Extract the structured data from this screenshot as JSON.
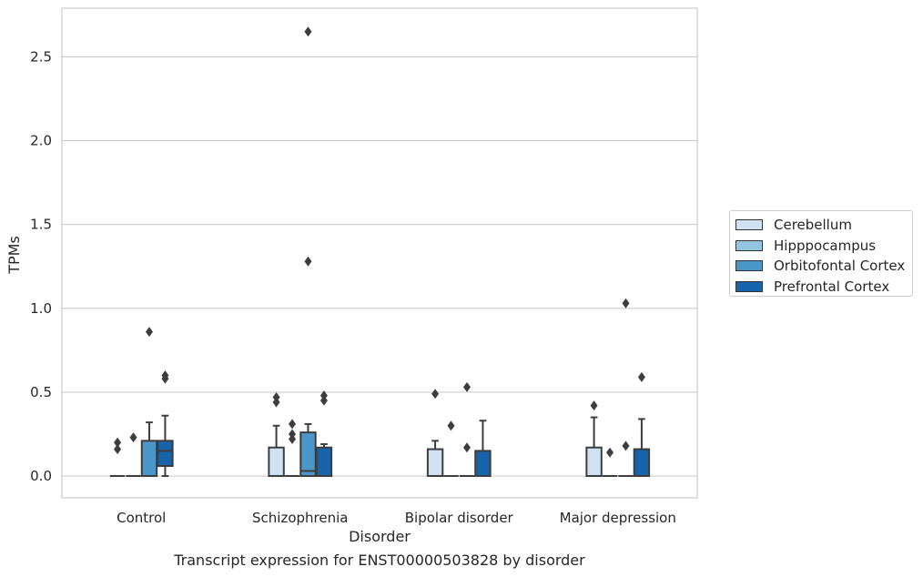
{
  "chart_data": {
    "type": "box",
    "title": "",
    "xlabel": "Disorder",
    "ylabel": "TPMs",
    "ylim": [
      -0.13,
      2.79
    ],
    "yticks": [
      0.0,
      0.5,
      1.0,
      1.5,
      2.0,
      2.5
    ],
    "ytick_labels": [
      "0.0",
      "0.5",
      "1.0",
      "1.5",
      "2.0",
      "2.5"
    ],
    "grid": true,
    "legend_position": "right",
    "categories": [
      "Control",
      "Schizophrenia",
      "Bipolar disorder",
      "Major depression"
    ],
    "series": [
      {
        "name": "Cerebellum",
        "color": "#d0e1f2",
        "boxes": [
          {
            "q1": 0,
            "median": 0,
            "q3": 0,
            "wlow": 0,
            "whigh": 0,
            "outliers": [
              0.16,
              0.2
            ]
          },
          {
            "q1": 0,
            "median": 0,
            "q3": 0.17,
            "wlow": 0,
            "whigh": 0.3,
            "outliers": [
              0.44,
              0.47
            ]
          },
          {
            "q1": 0,
            "median": 0,
            "q3": 0.16,
            "wlow": 0,
            "whigh": 0.21,
            "outliers": [
              0.49
            ]
          },
          {
            "q1": 0,
            "median": 0,
            "q3": 0.17,
            "wlow": 0,
            "whigh": 0.35,
            "outliers": [
              0.42
            ]
          }
        ]
      },
      {
        "name": "Hipppocampus",
        "color": "#94c4df",
        "boxes": [
          {
            "q1": 0,
            "median": 0,
            "q3": 0,
            "wlow": 0,
            "whigh": 0,
            "outliers": [
              0.23
            ]
          },
          {
            "q1": 0,
            "median": 0,
            "q3": 0,
            "wlow": 0,
            "whigh": 0,
            "outliers": [
              0.22,
              0.25,
              0.31
            ]
          },
          {
            "q1": 0,
            "median": 0,
            "q3": 0,
            "wlow": 0,
            "whigh": 0,
            "outliers": [
              0.3
            ]
          },
          {
            "q1": 0,
            "median": 0,
            "q3": 0,
            "wlow": 0,
            "whigh": 0,
            "outliers": [
              0.14
            ]
          }
        ]
      },
      {
        "name": "Orbitofontal Cortex",
        "color": "#4a98c9",
        "boxes": [
          {
            "q1": 0,
            "median": 0,
            "q3": 0.21,
            "wlow": 0,
            "whigh": 0.32,
            "outliers": [
              0.86
            ]
          },
          {
            "q1": 0,
            "median": 0.03,
            "q3": 0.26,
            "wlow": 0,
            "whigh": 0.31,
            "outliers": [
              1.28,
              2.65
            ]
          },
          {
            "q1": 0,
            "median": 0,
            "q3": 0,
            "wlow": 0,
            "whigh": 0,
            "outliers": [
              0.17,
              0.53
            ]
          },
          {
            "q1": 0,
            "median": 0,
            "q3": 0,
            "wlow": 0,
            "whigh": 0,
            "outliers": [
              0.18,
              1.03
            ]
          }
        ]
      },
      {
        "name": "Prefrontal Cortex",
        "color": "#1764ab",
        "boxes": [
          {
            "q1": 0.06,
            "median": 0.15,
            "q3": 0.21,
            "wlow": 0,
            "whigh": 0.36,
            "outliers": [
              0.58,
              0.6
            ]
          },
          {
            "q1": 0,
            "median": 0,
            "q3": 0.17,
            "wlow": 0,
            "whigh": 0.19,
            "outliers": [
              0.45,
              0.48
            ]
          },
          {
            "q1": 0,
            "median": 0,
            "q3": 0.15,
            "wlow": 0,
            "whigh": 0.33,
            "outliers": []
          },
          {
            "q1": 0,
            "median": 0,
            "q3": 0.16,
            "wlow": 0,
            "whigh": 0.34,
            "outliers": [
              0.59
            ]
          }
        ]
      }
    ]
  },
  "caption": "Transcript expression for ENST00000503828 by disorder"
}
